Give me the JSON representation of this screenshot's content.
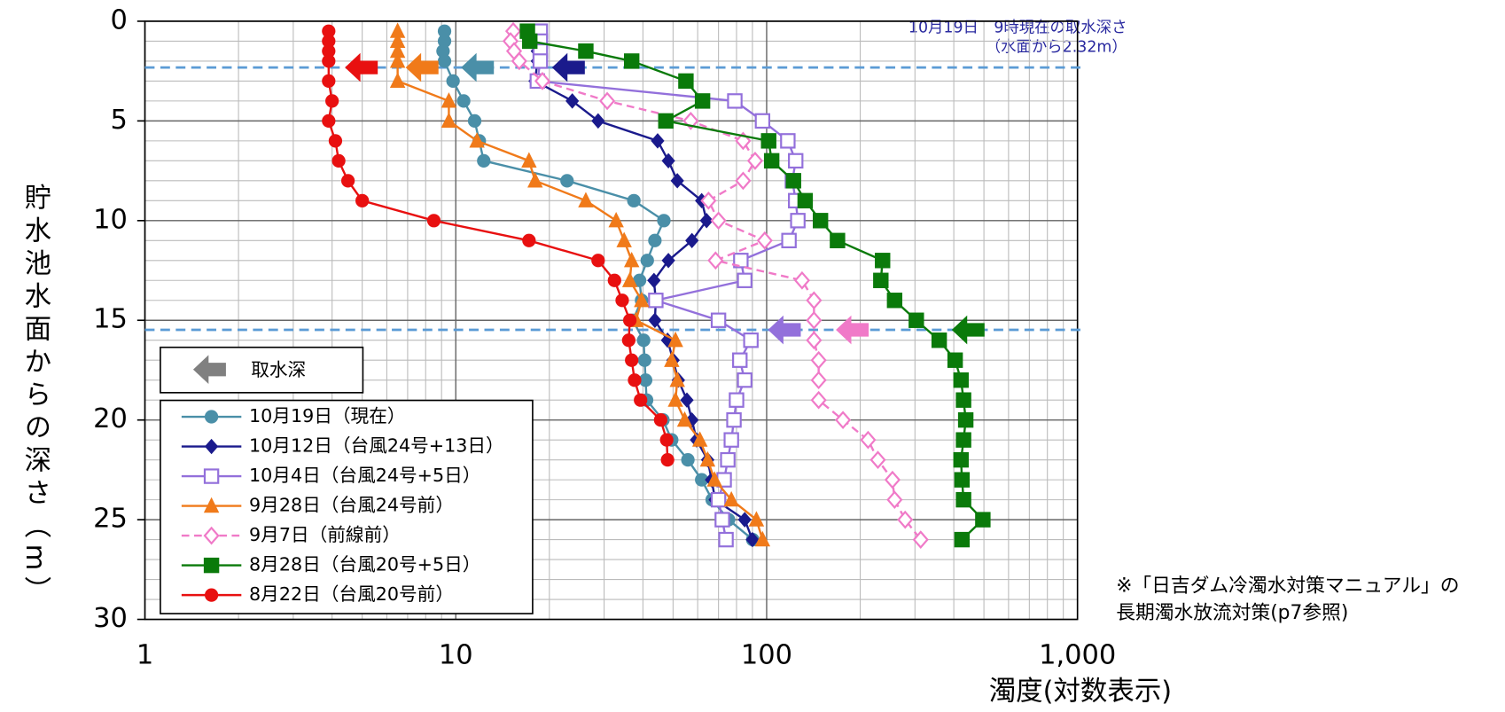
{
  "chart_data": {
    "type": "line",
    "x_label": "濁度(対数表示)",
    "y_label": "貯水池水面からの深さ（m）",
    "xlim": [
      1,
      1000
    ],
    "xticks": [
      1,
      10,
      100,
      {
        "value": 1000,
        "label": "1,000"
      }
    ],
    "xscale": "log",
    "ylim": [
      0,
      30
    ],
    "yticks": [
      0,
      5,
      10,
      15,
      20,
      25,
      30
    ],
    "y_inverted": true,
    "grid": true,
    "annotation": [
      "10月19日　9時現在の取水深さ",
      "（水面から2.32m）"
    ],
    "note": [
      "※「日吉ダム冷濁水対策マニュアル」の",
      "長期濁水放流対策(p7参照)"
    ],
    "arrow_legend": "取水深",
    "intake_depths": [
      2.32,
      15.48
    ],
    "intake_line_color": "#5b9bd5",
    "arrows": [
      {
        "x": 4.4,
        "y": 2.32,
        "color": "#e81010"
      },
      {
        "x": 6.9,
        "y": 2.32,
        "color": "#f07a1a"
      },
      {
        "x": 10.4,
        "y": 2.32,
        "color": "#4a8fa8"
      },
      {
        "x": 20.4,
        "y": 2.32,
        "color": "#1a1a8c"
      },
      {
        "x": 101,
        "y": 15.48,
        "color": "#9370db"
      },
      {
        "x": 167,
        "y": 15.48,
        "color": "#f07ac8"
      },
      {
        "x": 394,
        "y": 15.48,
        "color": "#0a7a0a"
      }
    ],
    "series": [
      {
        "name": "10月19日（現在）",
        "color": "#4a8fa8",
        "marker": "circle",
        "dashed": false,
        "x": [
          9.2,
          9.2,
          9.1,
          9.2,
          9.8,
          10.6,
          11.5,
          11.9,
          12.3,
          22.8,
          37.4,
          46.7,
          43.7,
          41.3,
          39,
          39.6,
          37.1,
          40.2,
          40.5,
          40.8,
          41.1,
          46.4,
          49.5,
          55.8,
          61.8,
          66.8,
          75.4,
          90.2
        ],
        "y": [
          0.5,
          1,
          1.5,
          2,
          3,
          4,
          5,
          6,
          7,
          8,
          9,
          10,
          11,
          12,
          13,
          14,
          15,
          16,
          17,
          18,
          19,
          20,
          21,
          22,
          23,
          24,
          25,
          26
        ]
      },
      {
        "name": "10月12日（台風24号+13日）",
        "color": "#1a1a8c",
        "marker": "diamond",
        "dashed": false,
        "x": [
          18.3,
          18.3,
          18.3,
          18.3,
          18,
          23.7,
          28.7,
          44.6,
          48.3,
          51.6,
          61.8,
          64.1,
          57.5,
          48.3,
          43.4,
          44,
          43.7,
          48,
          50,
          52,
          55.4,
          57.5,
          59.5,
          64.6,
          66.5,
          68.3,
          85,
          90
        ],
        "y": [
          0.5,
          1,
          1.5,
          2,
          3,
          4,
          5,
          6,
          7,
          8,
          9,
          10,
          11,
          12,
          13,
          14,
          15,
          16,
          17,
          18,
          19,
          20,
          21,
          22,
          23,
          24,
          25,
          26
        ]
      },
      {
        "name": "10月4日（台風24号+5日）",
        "color": "#9370db",
        "marker": "square-open",
        "dashed": false,
        "x": [
          18.7,
          18.7,
          18.7,
          18.7,
          18.3,
          79,
          97,
          117,
          124,
          121,
          124,
          126,
          118,
          82.6,
          85,
          44,
          70,
          89,
          82,
          85,
          80,
          78.5,
          77,
          75,
          73,
          70,
          72,
          74
        ],
        "y": [
          0.5,
          1,
          1.5,
          2,
          3,
          4,
          5,
          6,
          7,
          8,
          9,
          10,
          11,
          12,
          13,
          14,
          15,
          16,
          17,
          18,
          19,
          20,
          21,
          22,
          23,
          24,
          25,
          26
        ]
      },
      {
        "name": "9月28日（台風24号前）",
        "color": "#f07a1a",
        "marker": "triangle",
        "dashed": false,
        "x": [
          6.5,
          6.5,
          6.5,
          6.5,
          6.5,
          9.5,
          9.5,
          11.7,
          17.2,
          18,
          26.2,
          32.8,
          34.8,
          36.8,
          36.3,
          39.6,
          38,
          50.9,
          49.5,
          51.6,
          50.9,
          54.5,
          61,
          64.6,
          68,
          77,
          92.7,
          97
        ],
        "y": [
          0.5,
          1,
          1.5,
          2,
          3,
          4,
          5,
          6,
          7,
          8,
          9,
          10,
          11,
          12,
          13,
          14,
          15,
          16,
          17,
          18,
          19,
          20,
          21,
          22,
          23,
          24,
          25,
          26
        ]
      },
      {
        "name": "9月7日（前線前）",
        "color": "#f07ac8",
        "marker": "diamond-open",
        "dashed": true,
        "x": [
          15.3,
          15,
          15.4,
          16,
          19,
          30.7,
          57,
          84,
          91.8,
          84,
          65,
          70,
          98.6,
          68.5,
          130,
          142,
          142,
          142,
          147,
          147,
          147,
          176,
          212,
          228,
          254,
          258,
          279,
          313
        ],
        "y": [
          0.5,
          1,
          1.5,
          2,
          3,
          4,
          5,
          6,
          7,
          8,
          9,
          10,
          11,
          12,
          13,
          14,
          15,
          16,
          17,
          18,
          19,
          20,
          21,
          22,
          23,
          24,
          25,
          26
        ]
      },
      {
        "name": "8月28日（台風20号+5日）",
        "color": "#0a7a0a",
        "marker": "square",
        "dashed": false,
        "x": [
          17,
          17.3,
          26.2,
          36.8,
          55,
          62.2,
          47.4,
          101.5,
          103.8,
          122,
          133,
          149,
          169,
          236,
          233,
          258,
          303,
          359,
          404,
          422,
          430,
          437,
          430,
          422,
          425,
          430,
          496,
          425
        ],
        "y": [
          0.5,
          1,
          1.5,
          2,
          3,
          4,
          5,
          6,
          7,
          8,
          9,
          10,
          11,
          12,
          13,
          14,
          15,
          16,
          17,
          18,
          19,
          20,
          21,
          22,
          23,
          24,
          25,
          26
        ]
      },
      {
        "name": "8月22日（台風20号前）",
        "color": "#e81010",
        "marker": "circle",
        "dashed": false,
        "x": [
          3.9,
          3.9,
          3.9,
          3.9,
          3.9,
          4,
          3.9,
          4.1,
          4.2,
          4.5,
          5,
          8.5,
          17.2,
          28.7,
          32.4,
          34.3,
          36.3,
          36,
          36.8,
          37.6,
          39.3,
          45.6,
          47.7,
          48
        ],
        "y": [
          0.5,
          1,
          1.5,
          2,
          3,
          4,
          5,
          6,
          7,
          8,
          9,
          10,
          11,
          12,
          13,
          14,
          15,
          16,
          17,
          18,
          19,
          20,
          21,
          22
        ]
      }
    ]
  }
}
